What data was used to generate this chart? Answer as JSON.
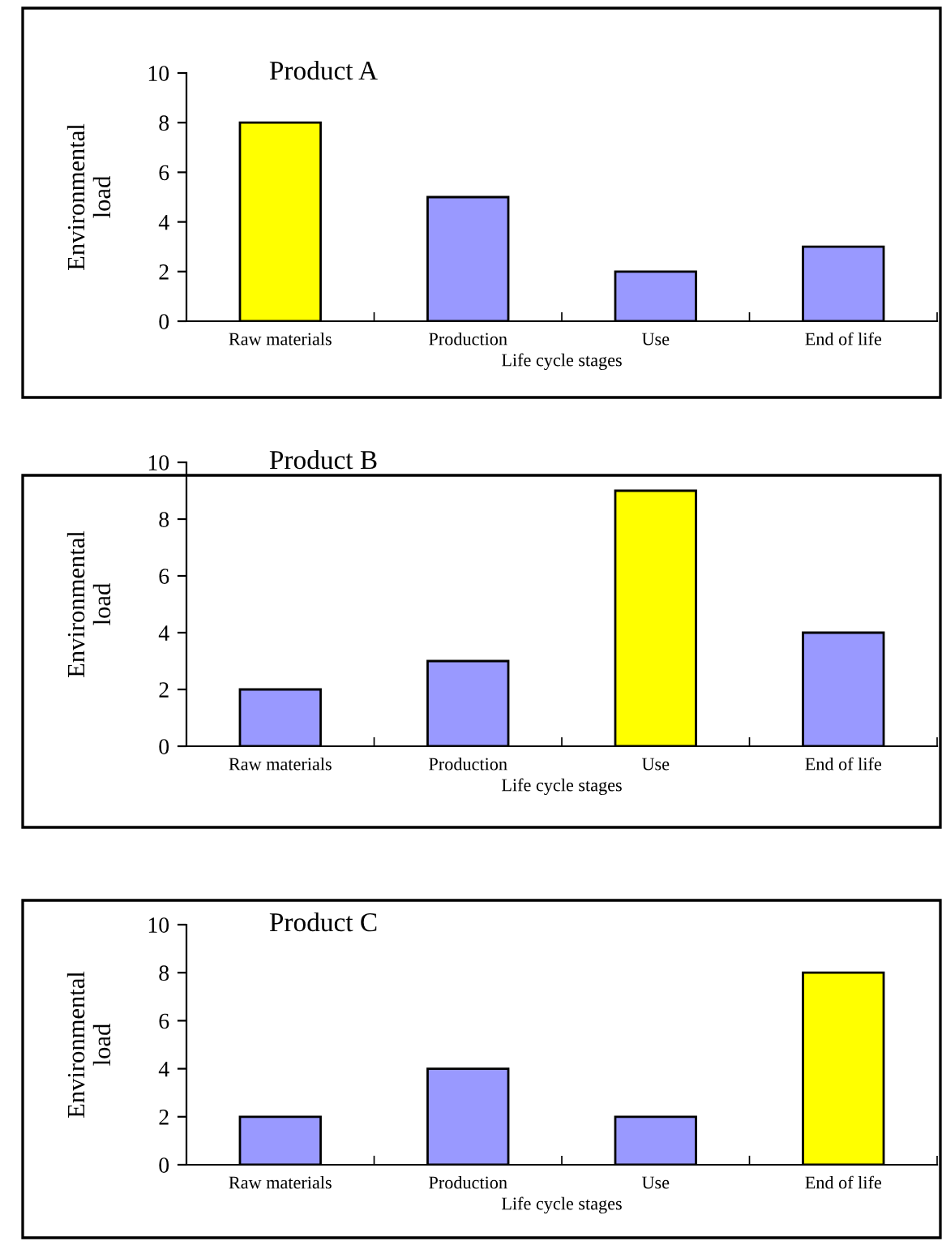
{
  "chart_data": [
    {
      "type": "bar",
      "title": "Product A",
      "xlabel": "Life cycle stages",
      "ylabel": "Environmental\nload",
      "categories": [
        "Raw materials",
        "Production",
        "Use",
        "End of life"
      ],
      "values": [
        8,
        5,
        2,
        3
      ],
      "colors": [
        "#ffff00",
        "#9999ff",
        "#9999ff",
        "#9999ff"
      ],
      "ylim": [
        0,
        10
      ],
      "yticks": [
        0,
        2,
        4,
        6,
        8,
        10
      ],
      "grid": false,
      "legend": false
    },
    {
      "type": "bar",
      "title": "Product B",
      "xlabel": "Life cycle stages",
      "ylabel": "Environmental\nload",
      "categories": [
        "Raw materials",
        "Production",
        "Use",
        "End of life"
      ],
      "values": [
        2,
        3,
        9,
        4
      ],
      "colors": [
        "#9999ff",
        "#9999ff",
        "#ffff00",
        "#9999ff"
      ],
      "ylim": [
        0,
        10
      ],
      "yticks": [
        0,
        2,
        4,
        6,
        8,
        10
      ],
      "grid": false,
      "legend": false
    },
    {
      "type": "bar",
      "title": "Product C",
      "xlabel": "Life cycle stages",
      "ylabel": "Environmental\nload",
      "categories": [
        "Raw materials",
        "Production",
        "Use",
        "End of life"
      ],
      "values": [
        2,
        4,
        2,
        8
      ],
      "colors": [
        "#9999ff",
        "#9999ff",
        "#9999ff",
        "#ffff00"
      ],
      "ylim": [
        0,
        10
      ],
      "yticks": [
        0,
        2,
        4,
        6,
        8,
        10
      ],
      "grid": false,
      "legend": false
    }
  ]
}
